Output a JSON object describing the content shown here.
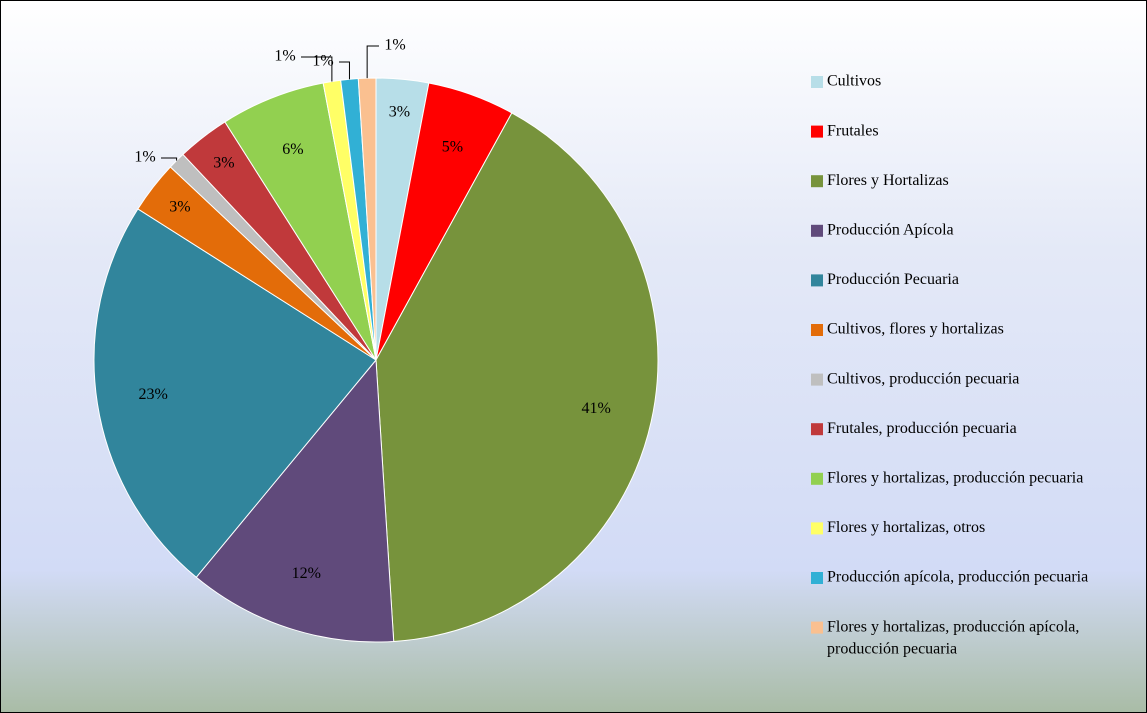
{
  "chart_data": {
    "type": "pie",
    "categories": [
      "Cultivos",
      "Frutales",
      "Flores y Hortalizas",
      "Producción Apícola",
      "Producción Pecuaria",
      "Cultivos, flores y hortalizas",
      "Cultivos, producción pecuaria",
      "Frutales, producción pecuaria",
      "Flores y hortalizas, producción pecuaria",
      "Flores y hortalizas, otros",
      "Producción apícola, producción pecuaria",
      "Flores y hortalizas, producción apícola, producción pecuaria"
    ],
    "values": [
      3,
      5,
      41,
      12,
      23,
      3,
      1,
      3,
      6,
      1,
      1,
      1
    ],
    "value_labels": [
      "3%",
      "5%",
      "41%",
      "12%",
      "23%",
      "3%",
      "1%",
      "3%",
      "6%",
      "1%",
      "1%",
      "1%"
    ],
    "colors": [
      "#b7dee8",
      "#ff0000",
      "#77933c",
      "#604a7b",
      "#31859c",
      "#e36c09",
      "#bfbfbf",
      "#c0393b",
      "#92d050",
      "#ffff66",
      "#31b0d5",
      "#fac090"
    ],
    "legend": "right"
  }
}
